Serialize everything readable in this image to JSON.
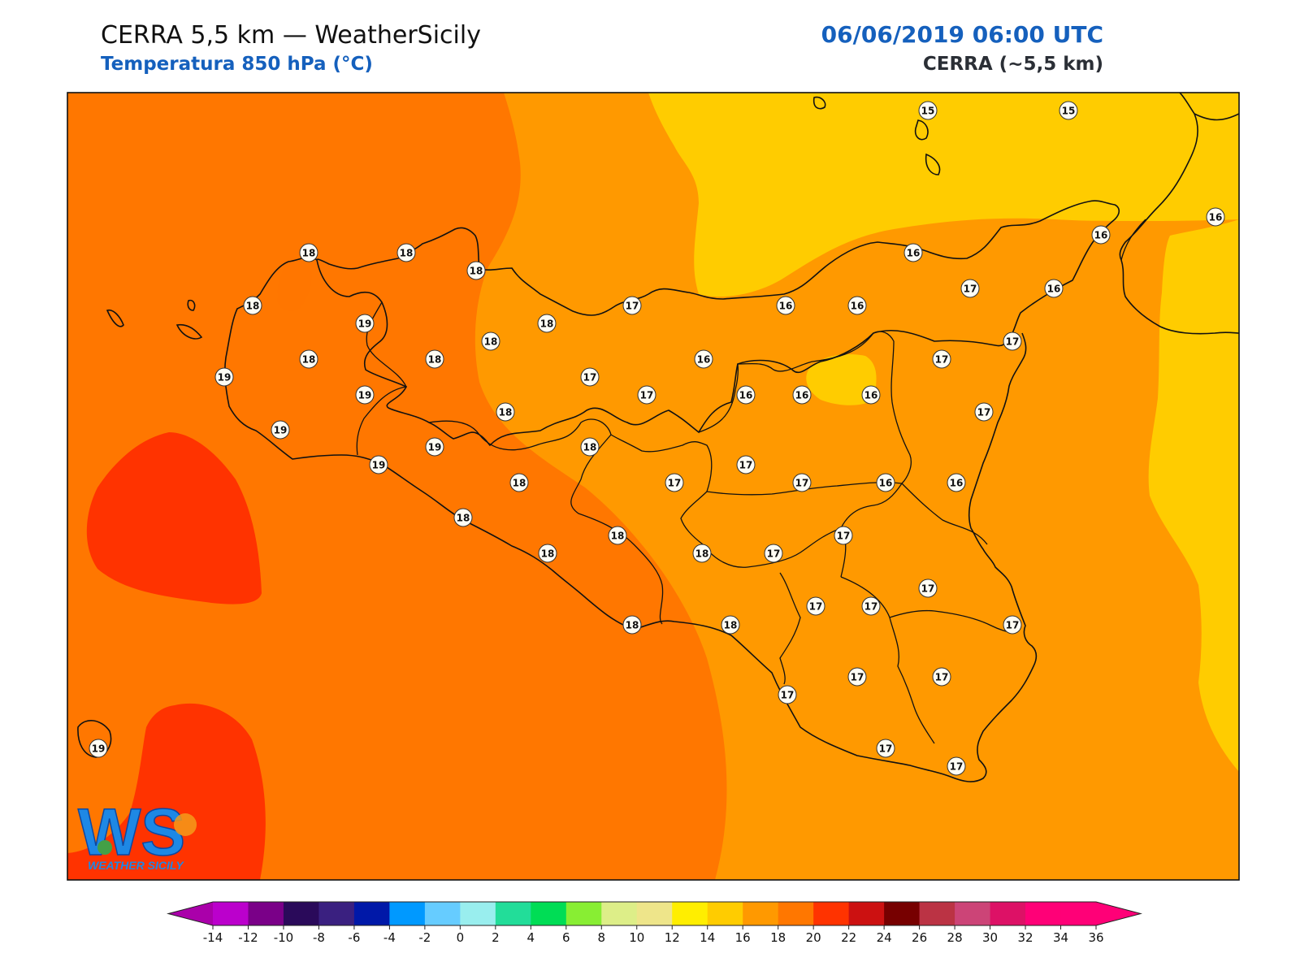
{
  "header": {
    "title_left": "CERRA 5,5 km — WeatherSicily",
    "subtitle_left": "Temperatura 850 hPa (°C)",
    "title_right": "06/06/2019 06:00 UTC",
    "subtitle_right": "CERRA (~5,5 km)"
  },
  "logo": {
    "text": "WS",
    "caption": "WEATHER SICILY"
  },
  "colors": {
    "t14_16": "#ffcc00",
    "t16_18": "#ff9900",
    "t18_20": "#ff7700",
    "t20_22": "#ff3300",
    "coast": "#111111",
    "marker_fill": "#fffdf4"
  },
  "station_values": [
    {
      "value": "15"
    },
    {
      "value": "15"
    },
    {
      "value": "16"
    },
    {
      "value": "16"
    },
    {
      "value": "18"
    },
    {
      "value": "18"
    },
    {
      "value": "18"
    },
    {
      "value": "16"
    },
    {
      "value": "18"
    },
    {
      "value": "17"
    },
    {
      "value": "16"
    },
    {
      "value": "16"
    },
    {
      "value": "17"
    },
    {
      "value": "16"
    },
    {
      "value": "19"
    },
    {
      "value": "18"
    },
    {
      "value": "18"
    },
    {
      "value": "18"
    },
    {
      "value": "18"
    },
    {
      "value": "16"
    },
    {
      "value": "17"
    },
    {
      "value": "17"
    },
    {
      "value": "19"
    },
    {
      "value": "19"
    },
    {
      "value": "17"
    },
    {
      "value": "17"
    },
    {
      "value": "16"
    },
    {
      "value": "16"
    },
    {
      "value": "16"
    },
    {
      "value": "18"
    },
    {
      "value": "17"
    },
    {
      "value": "19"
    },
    {
      "value": "19"
    },
    {
      "value": "18"
    },
    {
      "value": "19"
    },
    {
      "value": "18"
    },
    {
      "value": "17"
    },
    {
      "value": "17"
    },
    {
      "value": "17"
    },
    {
      "value": "16"
    },
    {
      "value": "16"
    },
    {
      "value": "18"
    },
    {
      "value": "18"
    },
    {
      "value": "17"
    },
    {
      "value": "18"
    },
    {
      "value": "18"
    },
    {
      "value": "17"
    },
    {
      "value": "17"
    },
    {
      "value": "17"
    },
    {
      "value": "17"
    },
    {
      "value": "18"
    },
    {
      "value": "18"
    },
    {
      "value": "17"
    },
    {
      "value": "17"
    },
    {
      "value": "17"
    },
    {
      "value": "17"
    },
    {
      "value": "19"
    },
    {
      "value": "17"
    },
    {
      "value": "17"
    }
  ],
  "colorbar": {
    "ticks": [
      "-14",
      "-12",
      "-10",
      "-8",
      "-6",
      "-4",
      "-2",
      "0",
      "2",
      "4",
      "6",
      "8",
      "10",
      "12",
      "14",
      "16",
      "18",
      "20",
      "22",
      "24",
      "26",
      "28",
      "30",
      "32",
      "34",
      "36"
    ],
    "colors": [
      "#bb00cc",
      "#7a0088",
      "#2a0a5a",
      "#3a2080",
      "#0018a8",
      "#0099ff",
      "#66ccff",
      "#99eeee",
      "#22dd99",
      "#00dd55",
      "#88ee33",
      "#ddee88",
      "#eee58a",
      "#ffee00",
      "#ffcc00",
      "#ff9900",
      "#ff7700",
      "#ff3300",
      "#cc1111",
      "#770000",
      "#bb3344",
      "#cc4477",
      "#dd1166",
      "#ff0077",
      "#ff0077"
    ],
    "under_color": "#aa00aa",
    "over_color": "#ff0077"
  }
}
